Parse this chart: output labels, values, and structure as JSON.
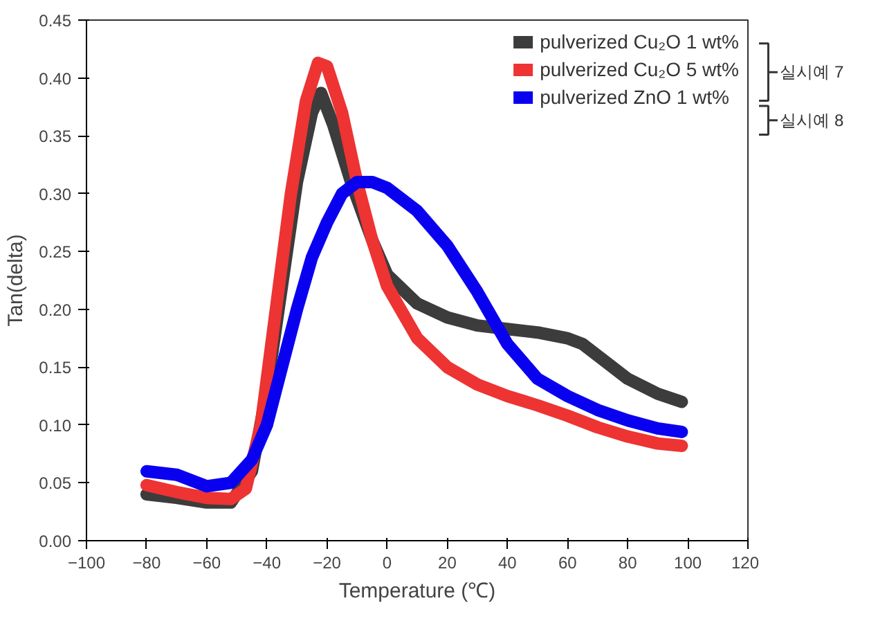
{
  "chart_data": {
    "type": "line",
    "xlabel": "Temperature (℃)",
    "ylabel": "Tan(delta)",
    "xlim": [
      -100,
      120
    ],
    "ylim": [
      0,
      0.45
    ],
    "xticks": [
      -100,
      -80,
      -60,
      -40,
      -20,
      0,
      20,
      40,
      60,
      80,
      100,
      120
    ],
    "yticks": [
      {
        "value": 0,
        "label": "0.00"
      },
      {
        "value": 0.05,
        "label": "0.05"
      },
      {
        "value": 0.1,
        "label": "0.10"
      },
      {
        "value": 0.15,
        "label": "0.15"
      },
      {
        "value": 0.2,
        "label": "0.20"
      },
      {
        "value": 0.25,
        "label": "0.25"
      },
      {
        "value": 0.3,
        "label": "0.30"
      },
      {
        "value": 0.35,
        "label": "0.35"
      },
      {
        "value": 0.4,
        "label": "0.40"
      },
      {
        "value": 0.45,
        "label": "0.45"
      }
    ],
    "grid": false,
    "legend": "top right",
    "line_style": "solid",
    "annotations": [
      "실시예 7",
      "실시예 8"
    ],
    "series": [
      {
        "name": "pulverized Cu₂O 1 wt%",
        "color": "#3c3c3c",
        "x": [
          -80,
          -70,
          -60,
          -52,
          -45,
          -40,
          -35,
          -30,
          -25,
          -22,
          -18,
          -12,
          -5,
          0,
          10,
          20,
          30,
          40,
          50,
          60,
          65,
          70,
          80,
          90,
          98
        ],
        "values": [
          0.04,
          0.037,
          0.033,
          0.033,
          0.06,
          0.13,
          0.22,
          0.31,
          0.37,
          0.387,
          0.36,
          0.31,
          0.26,
          0.23,
          0.205,
          0.193,
          0.186,
          0.183,
          0.18,
          0.175,
          0.17,
          0.16,
          0.14,
          0.127,
          0.12
        ]
      },
      {
        "name": "pulverized Cu₂O 5 wt%",
        "color": "#ee3333",
        "x": [
          -80,
          -70,
          -60,
          -52,
          -47,
          -42,
          -37,
          -32,
          -27,
          -23,
          -20,
          -15,
          -10,
          -5,
          0,
          10,
          20,
          30,
          40,
          50,
          60,
          70,
          80,
          90,
          98
        ],
        "values": [
          0.048,
          0.042,
          0.037,
          0.036,
          0.045,
          0.1,
          0.2,
          0.3,
          0.38,
          0.413,
          0.41,
          0.37,
          0.31,
          0.26,
          0.22,
          0.175,
          0.15,
          0.135,
          0.125,
          0.117,
          0.108,
          0.098,
          0.09,
          0.084,
          0.082
        ]
      },
      {
        "name": "pulverized ZnO 1 wt%",
        "color": "#0a00f0",
        "x": [
          -80,
          -70,
          -60,
          -52,
          -45,
          -40,
          -35,
          -30,
          -25,
          -20,
          -15,
          -10,
          -5,
          0,
          10,
          20,
          30,
          40,
          50,
          60,
          70,
          80,
          90,
          98
        ],
        "values": [
          0.06,
          0.057,
          0.047,
          0.05,
          0.07,
          0.1,
          0.15,
          0.2,
          0.245,
          0.275,
          0.3,
          0.31,
          0.31,
          0.305,
          0.285,
          0.255,
          0.215,
          0.17,
          0.14,
          0.125,
          0.113,
          0.104,
          0.097,
          0.094
        ]
      }
    ]
  }
}
